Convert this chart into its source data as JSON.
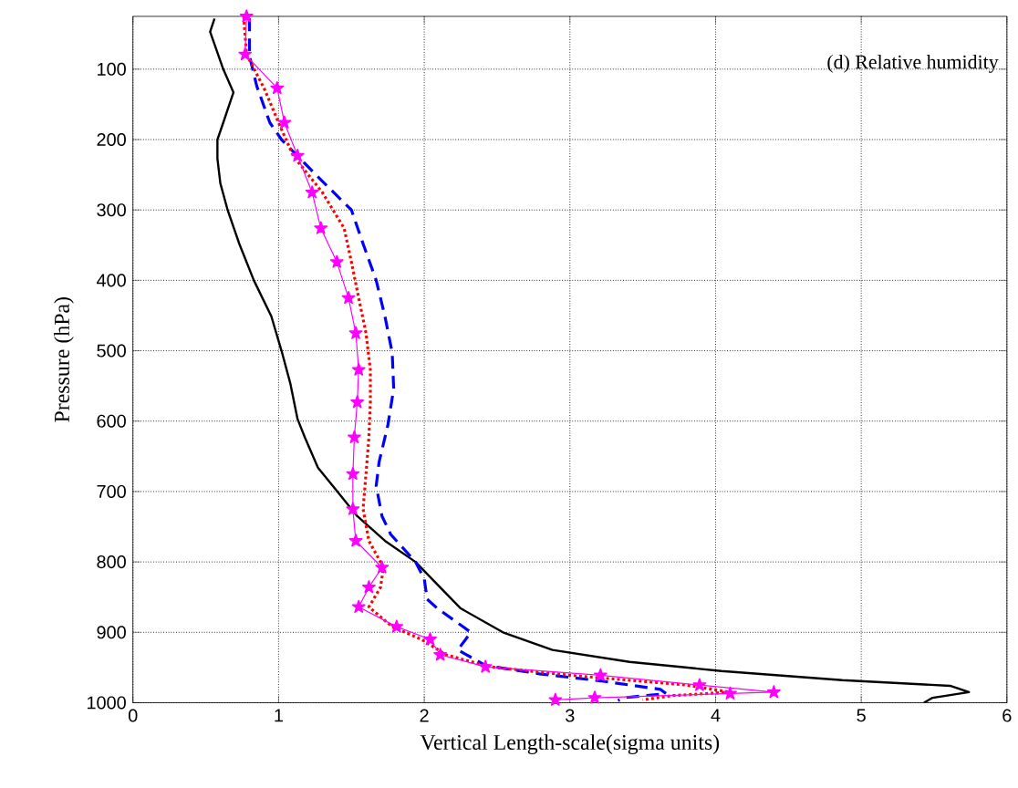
{
  "chart_data": {
    "type": "line",
    "xlabel": "Vertical Length-scale(sigma units)",
    "ylabel": "Pressure (hPa)",
    "annotations": [
      "(d) Relative humidity"
    ],
    "xlim": [
      0,
      6
    ],
    "xticks": [
      0,
      1,
      2,
      3,
      4,
      5,
      6
    ],
    "ylim": [
      1000,
      25
    ],
    "yticks": [
      100,
      200,
      300,
      400,
      500,
      600,
      700,
      800,
      900,
      1000
    ],
    "grid": true,
    "series": [
      {
        "color": "#000000",
        "line_style": "solid",
        "marker": "none",
        "x": [
          0.56,
          0.53,
          0.62,
          0.69,
          0.62,
          0.58,
          0.58,
          0.6,
          0.65,
          0.73,
          0.83,
          0.95,
          1.02,
          1.08,
          1.13,
          1.18,
          1.27,
          1.4,
          1.54,
          1.73,
          1.94,
          2.09,
          2.25,
          2.54,
          2.88,
          3.41,
          4.04,
          4.87,
          5.61,
          5.74,
          5.49,
          5.43
        ],
        "values": [
          28,
          47,
          100,
          133,
          176,
          200,
          227,
          262,
          300,
          348,
          400,
          451,
          500,
          546,
          597,
          623,
          666,
          699,
          735,
          770,
          800,
          832,
          866,
          900,
          925,
          942,
          955,
          968,
          976,
          985,
          993,
          1000
        ]
      },
      {
        "color": "#0000ff",
        "line_style": "dashed",
        "marker": "none",
        "x": [
          0.8,
          0.8,
          0.85,
          0.94,
          1.02,
          1.27,
          1.5,
          1.58,
          1.67,
          1.73,
          1.78,
          1.79,
          1.75,
          1.69,
          1.67,
          1.71,
          1.77,
          1.94,
          2.0,
          2.02,
          2.09,
          2.32,
          2.23,
          2.42,
          2.79,
          3.21,
          3.62,
          3.66,
          3.37,
          3.33
        ],
        "values": [
          28,
          81,
          124,
          176,
          200,
          253,
          300,
          348,
          400,
          451,
          503,
          554,
          606,
          658,
          692,
          735,
          761,
          800,
          824,
          853,
          866,
          900,
          925,
          947,
          959,
          969,
          981,
          987,
          993,
          997
        ]
      },
      {
        "color": "#ff0000",
        "line_style": "dotted",
        "marker": "none",
        "x": [
          0.76,
          0.78,
          0.9,
          1.0,
          1.1,
          1.3,
          1.45,
          1.5,
          1.55,
          1.6,
          1.63,
          1.63,
          1.62,
          1.6,
          1.58,
          1.62,
          1.72,
          1.7,
          1.62,
          1.78,
          1.98,
          2.15,
          2.45,
          3.0,
          3.8,
          4.1,
          3.7,
          3.5
        ],
        "values": [
          25,
          79,
          127,
          176,
          223,
          275,
          326,
          374,
          425,
          475,
          527,
          573,
          623,
          675,
          725,
          770,
          808,
          836,
          864,
          892,
          910,
          932,
          949,
          961,
          975,
          985,
          990,
          996
        ]
      },
      {
        "color": "#ff00ff",
        "line_style": "solid",
        "marker": "star",
        "x": [
          0.78,
          0.77,
          0.99,
          1.04,
          1.13,
          1.23,
          1.29,
          1.4,
          1.48,
          1.53,
          1.55,
          1.54,
          1.52,
          1.51,
          1.51,
          1.53,
          1.71,
          1.62,
          1.55,
          1.81,
          2.04,
          2.11,
          2.42,
          3.21,
          3.89,
          4.4,
          4.1,
          3.17,
          2.9
        ],
        "values": [
          25,
          79,
          127,
          176,
          223,
          275,
          326,
          374,
          425,
          475,
          527,
          573,
          623,
          675,
          725,
          770,
          808,
          836,
          864,
          892,
          910,
          932,
          949,
          961,
          975,
          985,
          987,
          993,
          996
        ]
      }
    ]
  }
}
